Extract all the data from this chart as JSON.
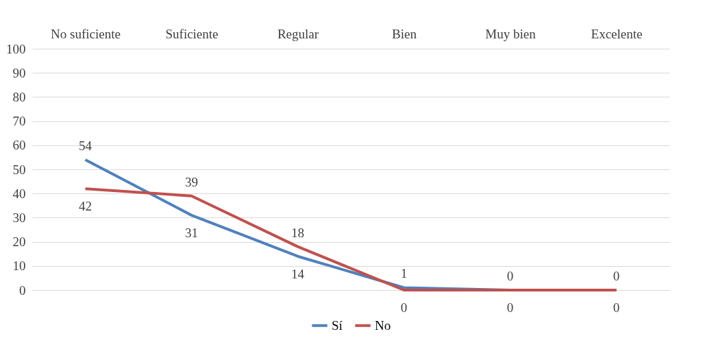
{
  "chart_data": {
    "type": "line",
    "categories": [
      "No suficiente",
      "Suficiente",
      "Regular",
      "Bien",
      "Muy bien",
      "Excelente"
    ],
    "series": [
      {
        "name": "Sí",
        "color": "#4f81bd",
        "values": [
          54,
          31,
          14,
          1,
          0,
          0
        ]
      },
      {
        "name": "No",
        "color": "#c0504d",
        "values": [
          42,
          39,
          18,
          0,
          0,
          0
        ]
      }
    ],
    "ylim": [
      0,
      100
    ],
    "yticks": [
      0,
      10,
      20,
      30,
      40,
      50,
      60,
      70,
      80,
      90,
      100
    ],
    "grid": "y",
    "legend": "bottom",
    "data_labels": true,
    "line_style": "solid",
    "marker": "none"
  }
}
